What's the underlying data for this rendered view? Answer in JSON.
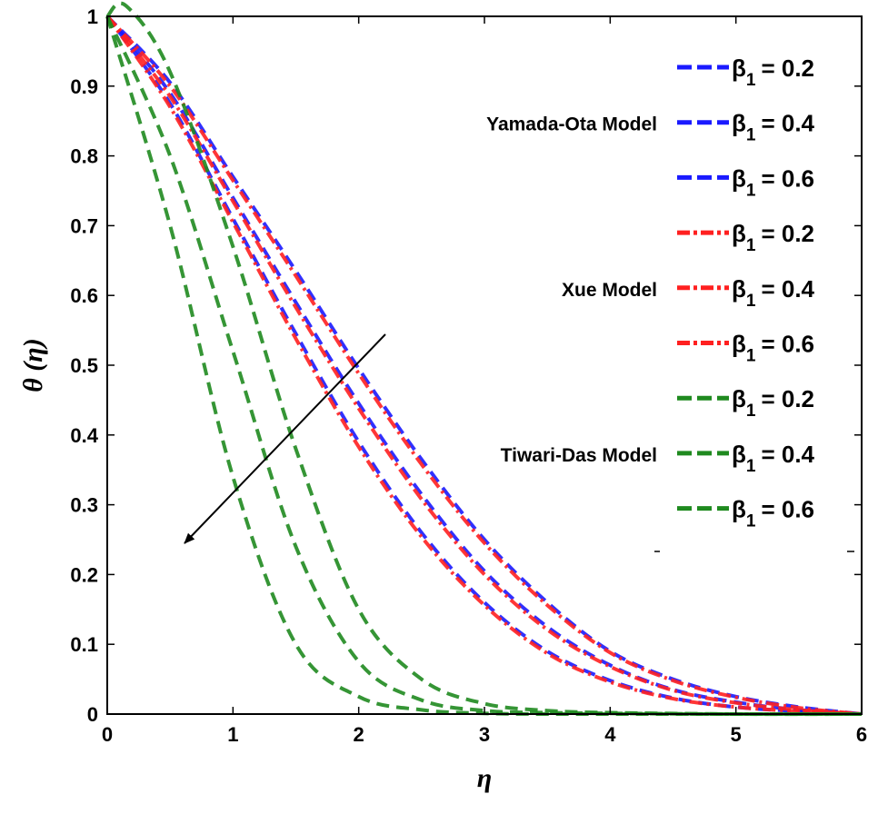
{
  "chart_data": {
    "type": "line",
    "title": "",
    "xlabel": "η",
    "ylabel": "θ (η)",
    "xlim": [
      0,
      6
    ],
    "ylim": [
      0,
      1
    ],
    "xticks": [
      "0",
      "1",
      "2",
      "3",
      "4",
      "5",
      "6"
    ],
    "yticks": [
      "0",
      "0.1",
      "0.2",
      "0.3",
      "0.4",
      "0.5",
      "0.6",
      "0.7",
      "0.8",
      "0.9",
      "1"
    ],
    "legend_position": "top-right",
    "annotation": "arrow indicating decrease of θ(η) with increasing β1",
    "colors": {
      "blue": "#1a1aff",
      "red": "#ff2020",
      "green": "#1f8a1f"
    },
    "groups": [
      {
        "model": "Yamada-Ota Model",
        "color": "#1a1aff",
        "dash": "dashed",
        "series": [
          {
            "name": "β1 = 0.2",
            "beta_label": "β",
            "sub": "1",
            "value_text": "= 0.2",
            "x": [
              0,
              0.5,
              1,
              1.5,
              2,
              2.5,
              3,
              3.5,
              4,
              4.5,
              5,
              5.5,
              6
            ],
            "y": [
              1,
              0.905,
              0.77,
              0.635,
              0.495,
              0.365,
              0.25,
              0.16,
              0.09,
              0.05,
              0.025,
              0.01,
              0
            ]
          },
          {
            "name": "β1 = 0.4",
            "beta_label": "β",
            "sub": "1",
            "value_text": "= 0.4",
            "x": [
              0,
              0.5,
              1,
              1.5,
              2,
              2.5,
              3,
              3.5,
              4,
              4.5,
              5,
              5.5,
              6
            ],
            "y": [
              1,
              0.89,
              0.74,
              0.59,
              0.445,
              0.315,
              0.205,
              0.125,
              0.07,
              0.035,
              0.017,
              0.006,
              0
            ]
          },
          {
            "name": "β1 = 0.6",
            "beta_label": "β",
            "sub": "1",
            "value_text": "= 0.6",
            "x": [
              0,
              0.5,
              1,
              1.5,
              2,
              2.5,
              3,
              3.5,
              4,
              4.5,
              5,
              5.5,
              6
            ],
            "y": [
              1,
              0.875,
              0.71,
              0.545,
              0.39,
              0.26,
              0.16,
              0.09,
              0.048,
              0.023,
              0.01,
              0.004,
              0
            ]
          }
        ]
      },
      {
        "model": "Xue Model",
        "color": "#ff2020",
        "dash": "dashdot",
        "series": [
          {
            "name": "β1 = 0.2",
            "beta_label": "β",
            "sub": "1",
            "value_text": "= 0.2",
            "x": [
              0,
              0.5,
              1,
              1.5,
              2,
              2.5,
              3,
              3.5,
              4,
              4.5,
              5,
              5.5,
              6
            ],
            "y": [
              1,
              0.9,
              0.765,
              0.628,
              0.488,
              0.358,
              0.245,
              0.156,
              0.088,
              0.048,
              0.024,
              0.009,
              0
            ]
          },
          {
            "name": "β1 = 0.4",
            "beta_label": "β",
            "sub": "1",
            "value_text": "= 0.4",
            "x": [
              0,
              0.5,
              1,
              1.5,
              2,
              2.5,
              3,
              3.5,
              4,
              4.5,
              5,
              5.5,
              6
            ],
            "y": [
              1,
              0.885,
              0.735,
              0.583,
              0.438,
              0.308,
              0.2,
              0.121,
              0.068,
              0.034,
              0.016,
              0.006,
              0
            ]
          },
          {
            "name": "β1 = 0.6",
            "beta_label": "β",
            "sub": "1",
            "value_text": "= 0.6",
            "x": [
              0,
              0.5,
              1,
              1.5,
              2,
              2.5,
              3,
              3.5,
              4,
              4.5,
              5,
              5.5,
              6
            ],
            "y": [
              1,
              0.87,
              0.705,
              0.538,
              0.383,
              0.254,
              0.156,
              0.087,
              0.046,
              0.022,
              0.01,
              0.004,
              0
            ]
          }
        ]
      },
      {
        "model": "Tiwari-Das Model",
        "color": "#1f8a1f",
        "dash": "dashed",
        "series": [
          {
            "name": "β1 = 0.2",
            "beta_label": "β",
            "sub": "1",
            "value_text": "= 0.2",
            "x": [
              0,
              0.15,
              0.5,
              1,
              1.5,
              2,
              2.5,
              3,
              3.5,
              4,
              5,
              6
            ],
            "y": [
              1,
              1.015,
              0.92,
              0.67,
              0.38,
              0.15,
              0.05,
              0.015,
              0.005,
              0.002,
              0,
              0
            ]
          },
          {
            "name": "β1 = 0.4",
            "beta_label": "β",
            "sub": "1",
            "value_text": "= 0.4",
            "x": [
              0,
              0.5,
              1,
              1.5,
              2,
              2.5,
              3,
              3.5,
              4,
              5,
              6
            ],
            "y": [
              1,
              0.8,
              0.52,
              0.24,
              0.075,
              0.02,
              0.005,
              0.002,
              0.001,
              0,
              0
            ]
          },
          {
            "name": "β1 = 0.6",
            "beta_label": "β",
            "sub": "1",
            "value_text": "= 0.6",
            "x": [
              0,
              0.5,
              1,
              1.5,
              2,
              2.5,
              3,
              3.5,
              4,
              5,
              6
            ],
            "y": [
              1,
              0.7,
              0.34,
              0.1,
              0.025,
              0.006,
              0.001,
              0,
              0,
              0,
              0
            ]
          }
        ]
      }
    ]
  }
}
